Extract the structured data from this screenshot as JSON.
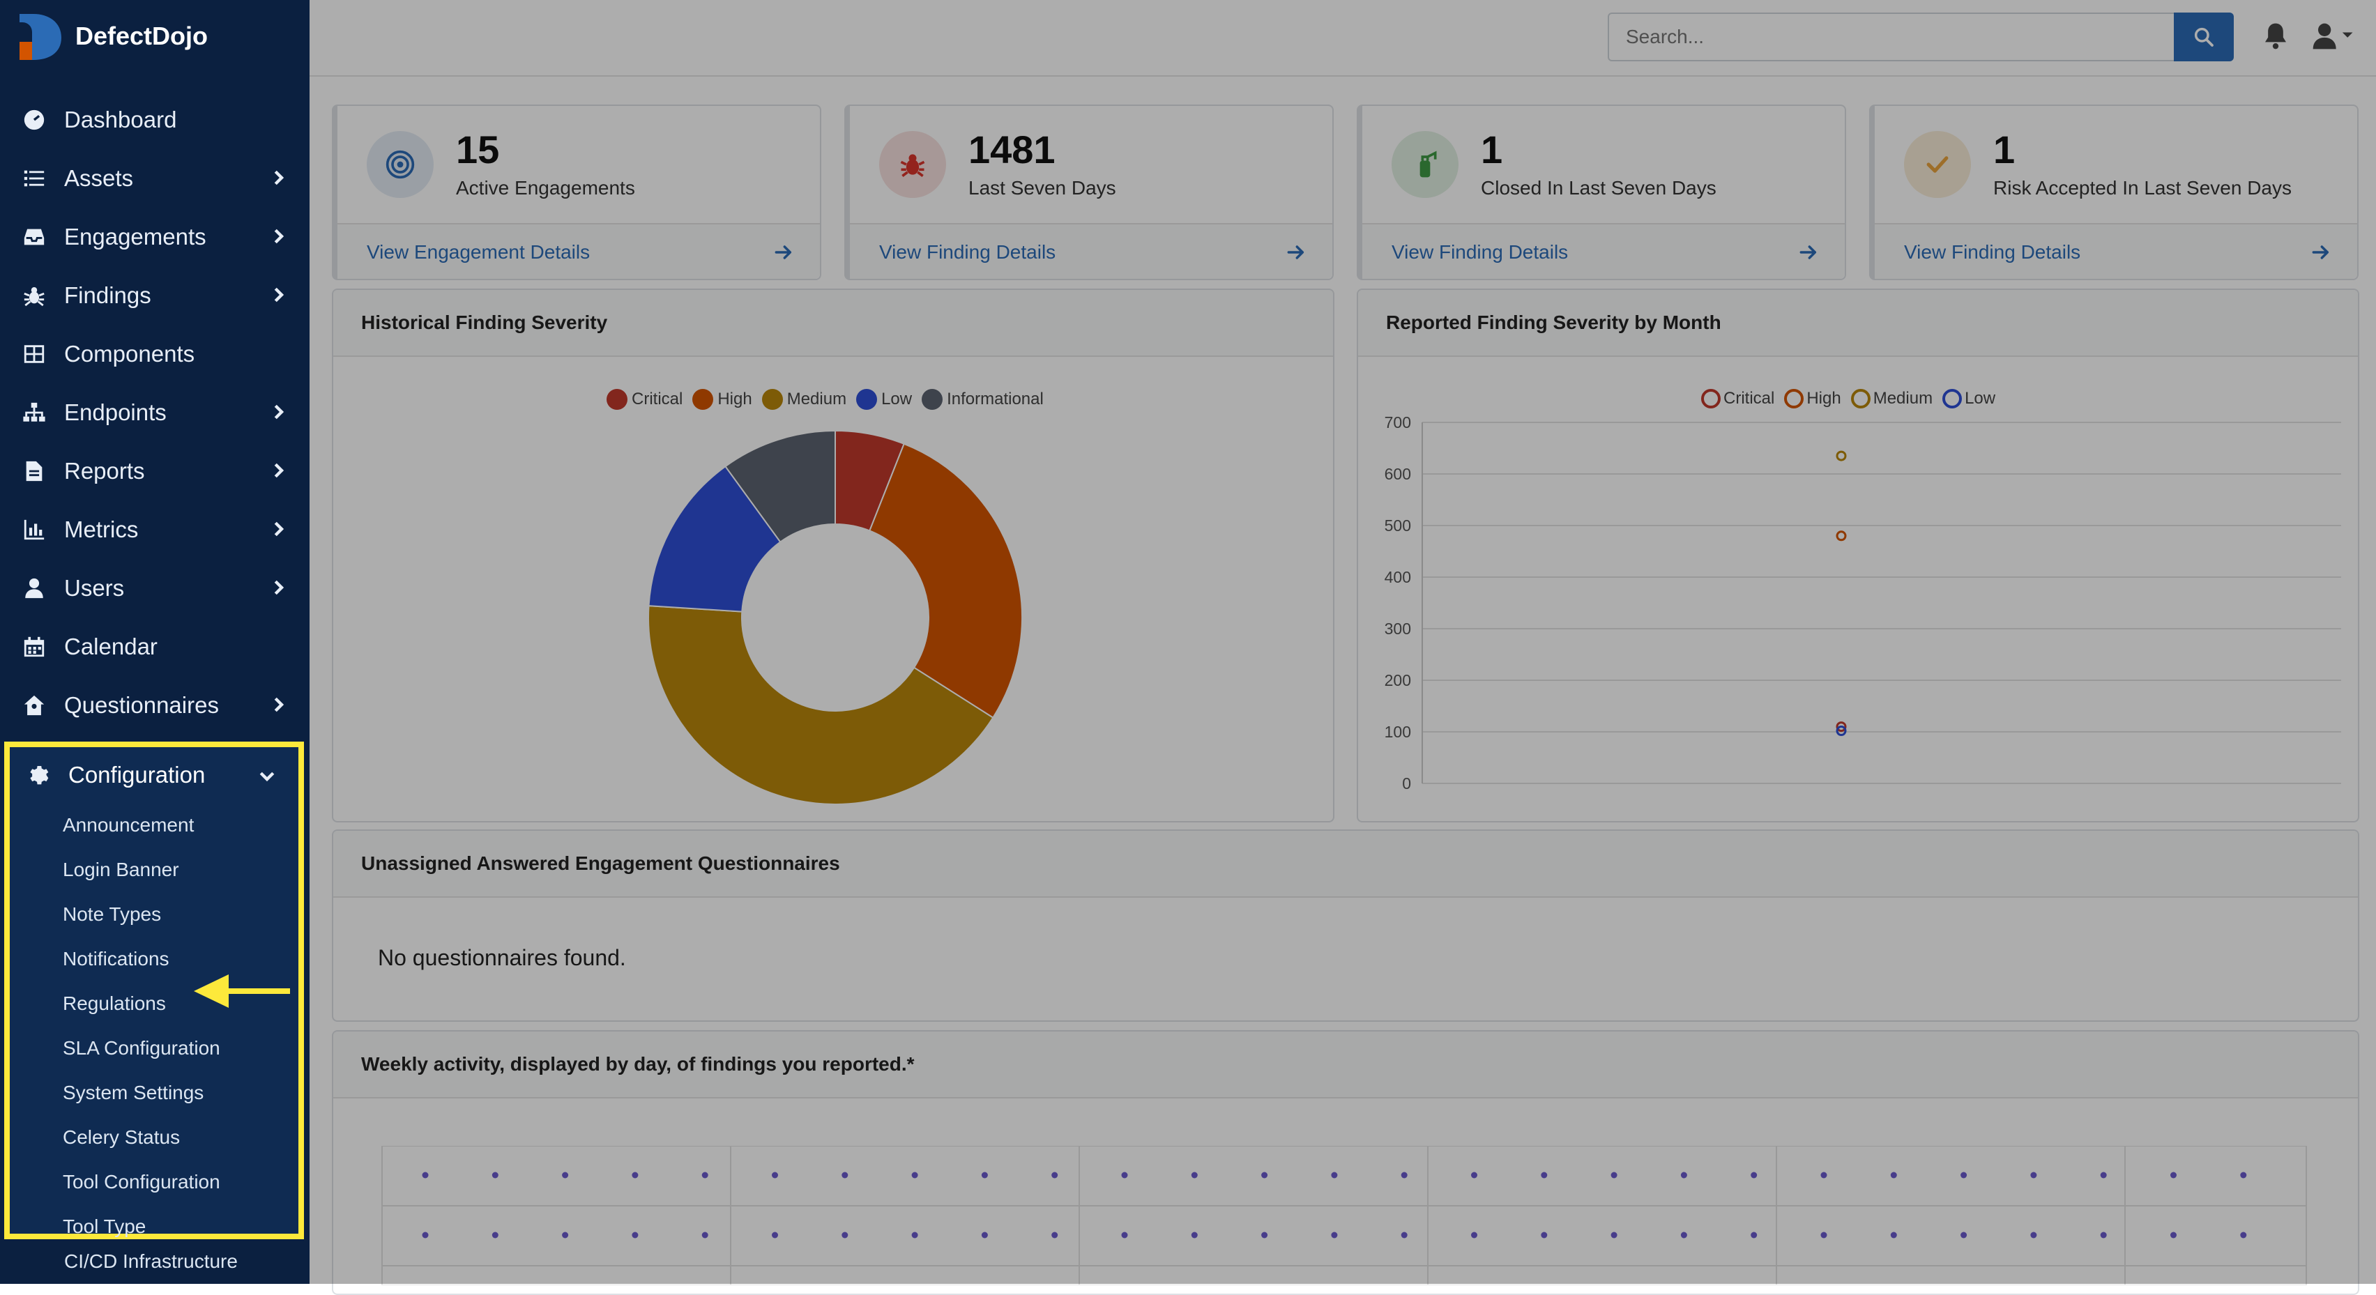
{
  "brand": {
    "name": "DefectDojo"
  },
  "sidebar": {
    "items": [
      {
        "label": "Dashboard",
        "icon": "dashboard-icon",
        "chevron": false
      },
      {
        "label": "Assets",
        "icon": "list-icon",
        "chevron": true
      },
      {
        "label": "Engagements",
        "icon": "inbox-icon",
        "chevron": true
      },
      {
        "label": "Findings",
        "icon": "bug-icon",
        "chevron": true
      },
      {
        "label": "Components",
        "icon": "table-icon",
        "chevron": false
      },
      {
        "label": "Endpoints",
        "icon": "sitemap-icon",
        "chevron": true
      },
      {
        "label": "Reports",
        "icon": "file-icon",
        "chevron": true
      },
      {
        "label": "Metrics",
        "icon": "bar-chart-icon",
        "chevron": true
      },
      {
        "label": "Users",
        "icon": "user-icon",
        "chevron": true
      },
      {
        "label": "Calendar",
        "icon": "calendar-icon",
        "chevron": false
      },
      {
        "label": "Questionnaires",
        "icon": "house-user-icon",
        "chevron": true
      }
    ],
    "configuration": {
      "label": "Configuration",
      "subitems": [
        "Announcement",
        "Login Banner",
        "Note Types",
        "Notifications",
        "Regulations",
        "SLA Configuration",
        "System Settings",
        "Celery Status",
        "Tool Configuration",
        "Tool Type"
      ]
    },
    "after": "CI/CD Infrastructure"
  },
  "search": {
    "placeholder": "Search..."
  },
  "cards": [
    {
      "value": "15",
      "label": "Active Engagements",
      "link": "View Engagement Details",
      "accent": "#2b6bb5"
    },
    {
      "value": "1481",
      "label": "Last Seven Days",
      "link": "View Finding Details",
      "accent": "#d9342b"
    },
    {
      "value": "1",
      "label": "Closed In Last Seven Days",
      "link": "View Finding Details",
      "accent": "#3f9a45"
    },
    {
      "value": "1",
      "label": "Risk Accepted In Last Seven Days",
      "link": "View Finding Details",
      "accent": "#e8a33d"
    }
  ],
  "panels": {
    "historical": {
      "title": "Historical Finding Severity"
    },
    "monthly": {
      "title": "Reported Finding Severity by Month"
    },
    "questionnaires": {
      "title": "Unassigned Answered Engagement Questionnaires",
      "empty": "No questionnaires found."
    },
    "weekly": {
      "title": "Weekly activity, displayed by day, of findings you reported.*"
    }
  },
  "chart_data": [
    {
      "type": "pie",
      "legend": [
        "Critical",
        "High",
        "Medium",
        "Low",
        "Informational"
      ],
      "colors": [
        "#c0392b",
        "#d35400",
        "#b8860b",
        "#2e4fd6",
        "#5c6370"
      ],
      "values": [
        6,
        28,
        42,
        14,
        10
      ]
    },
    {
      "type": "scatter",
      "legend": [
        "Critical",
        "High",
        "Medium",
        "Low"
      ],
      "colors": [
        "#c0392b",
        "#d35400",
        "#b8860b",
        "#2e4fd6"
      ],
      "yticks": [
        "0",
        "100",
        "200",
        "300",
        "400",
        "500",
        "600",
        "700"
      ],
      "ylim": [
        0,
        700
      ],
      "series": [
        {
          "name": "Critical",
          "values": [
            110
          ]
        },
        {
          "name": "High",
          "values": [
            480
          ]
        },
        {
          "name": "Medium",
          "values": [
            635
          ]
        },
        {
          "name": "Low",
          "values": [
            102
          ]
        }
      ]
    }
  ]
}
